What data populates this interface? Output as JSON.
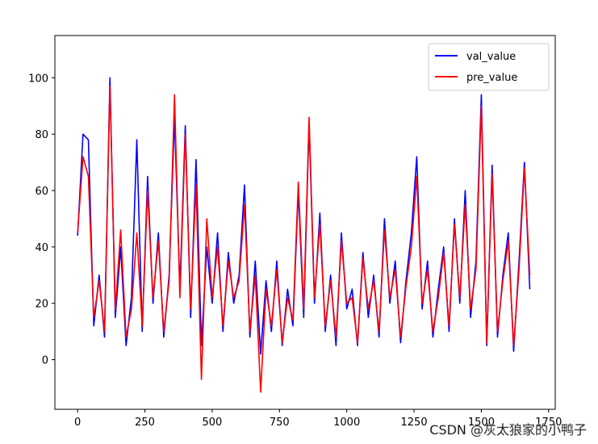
{
  "chart_data": {
    "type": "line",
    "x": [
      0,
      20,
      40,
      60,
      80,
      100,
      120,
      140,
      160,
      180,
      200,
      220,
      240,
      260,
      280,
      300,
      320,
      340,
      360,
      380,
      400,
      420,
      440,
      460,
      480,
      500,
      520,
      540,
      560,
      580,
      600,
      620,
      640,
      660,
      680,
      700,
      720,
      740,
      760,
      780,
      800,
      820,
      840,
      860,
      880,
      900,
      920,
      940,
      960,
      980,
      1000,
      1020,
      1040,
      1060,
      1080,
      1100,
      1120,
      1140,
      1160,
      1180,
      1200,
      1220,
      1240,
      1260,
      1280,
      1300,
      1320,
      1340,
      1360,
      1380,
      1400,
      1420,
      1440,
      1460,
      1480,
      1500,
      1520,
      1540,
      1560,
      1580,
      1600,
      1620,
      1640,
      1660,
      1680
    ],
    "series": [
      {
        "name": "val_value",
        "color": "#0000ff",
        "values": [
          44,
          80,
          78,
          12,
          30,
          8,
          100,
          15,
          40,
          5,
          22,
          78,
          10,
          65,
          20,
          45,
          8,
          30,
          86,
          25,
          83,
          15,
          71,
          5,
          40,
          20,
          45,
          10,
          38,
          20,
          30,
          62,
          8,
          35,
          2,
          28,
          10,
          35,
          5,
          25,
          12,
          60,
          15,
          84,
          20,
          52,
          10,
          30,
          5,
          45,
          18,
          25,
          5,
          38,
          15,
          30,
          8,
          50,
          20,
          35,
          6,
          28,
          45,
          72,
          18,
          35,
          8,
          25,
          40,
          10,
          50,
          20,
          60,
          15,
          35,
          94,
          5,
          69,
          8,
          30,
          45,
          3,
          35,
          70,
          25
        ]
      },
      {
        "name": "pre_value",
        "color": "#ff0000",
        "values": [
          45,
          72,
          65,
          15,
          28,
          10,
          97,
          18,
          46,
          8,
          18,
          45,
          12,
          60,
          22,
          42,
          10,
          28,
          94,
          22,
          80,
          18,
          62,
          -7,
          50,
          22,
          40,
          12,
          35,
          22,
          28,
          55,
          10,
          30,
          -11.5,
          25,
          12,
          32,
          6,
          22,
          14,
          63,
          18,
          86,
          22,
          48,
          12,
          28,
          8,
          42,
          20,
          22,
          6,
          36,
          18,
          28,
          10,
          46,
          22,
          32,
          8,
          26,
          40,
          65,
          20,
          32,
          10,
          22,
          38,
          12,
          48,
          22,
          55,
          18,
          32,
          90,
          6,
          66,
          10,
          28,
          42,
          5,
          32,
          68,
          30
        ]
      }
    ],
    "xlim": [
      -84.5,
      1774.5
    ],
    "ylim": [
      -17.6,
      115
    ],
    "xticks": [
      0,
      250,
      500,
      750,
      1000,
      1250,
      1500,
      1750
    ],
    "yticks": [
      0,
      20,
      40,
      60,
      80,
      100
    ],
    "legend": "upper right",
    "watermark": "CSDN @灰太狼家的小鸭子"
  }
}
